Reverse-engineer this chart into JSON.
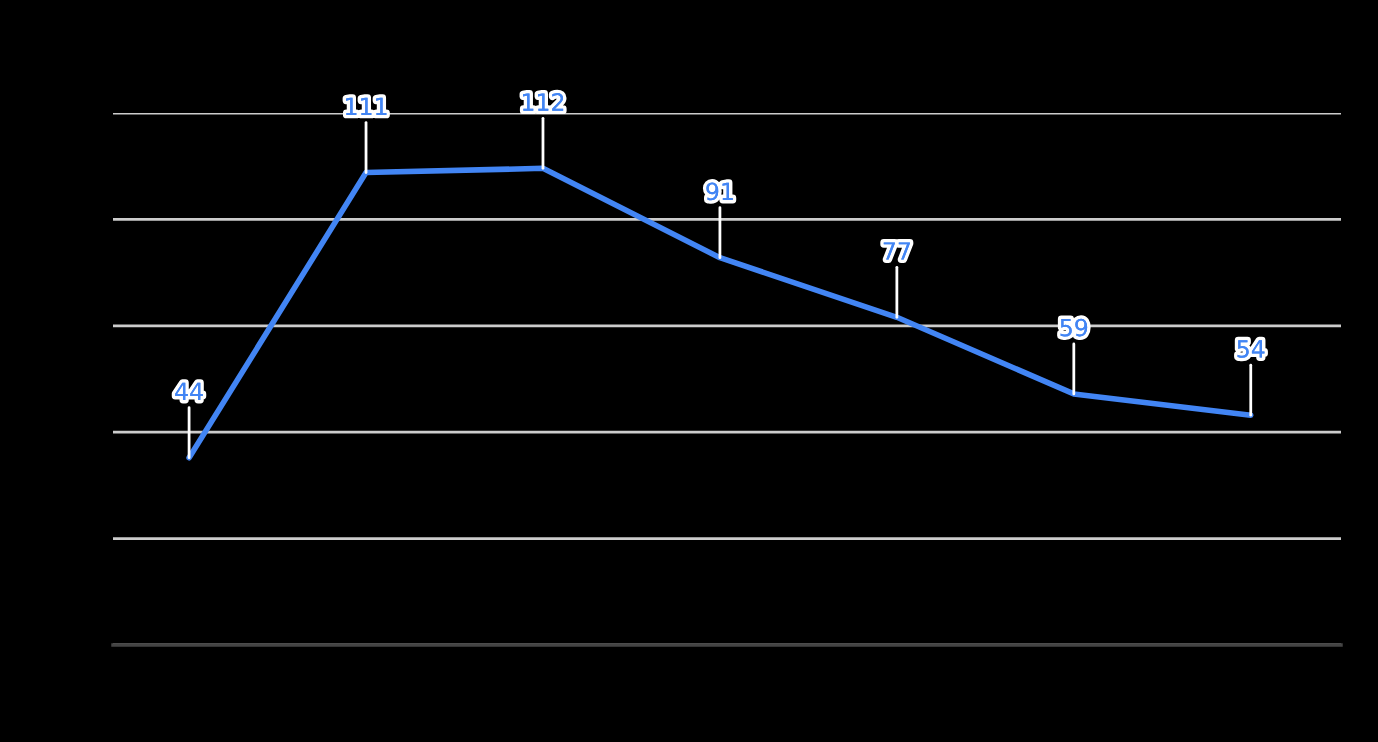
{
  "chart_data": {
    "type": "line",
    "categories": [
      null,
      null,
      null,
      null,
      null,
      null,
      null
    ],
    "series": [
      {
        "color": "#4285f4",
        "values": [
          44,
          111,
          112,
          91,
          77,
          59,
          54
        ]
      }
    ],
    "ylim": [
      0,
      125
    ],
    "yticks": [
      {
        "value": 0,
        "label": null
      },
      {
        "value": 25,
        "label": null
      },
      {
        "value": 50,
        "label": null
      },
      {
        "value": 75,
        "label": null
      },
      {
        "value": 100,
        "label": null
      },
      {
        "value": 125,
        "label": null
      }
    ],
    "grid": "y",
    "data_labels": true,
    "marker": "none",
    "line_style": "solid"
  }
}
